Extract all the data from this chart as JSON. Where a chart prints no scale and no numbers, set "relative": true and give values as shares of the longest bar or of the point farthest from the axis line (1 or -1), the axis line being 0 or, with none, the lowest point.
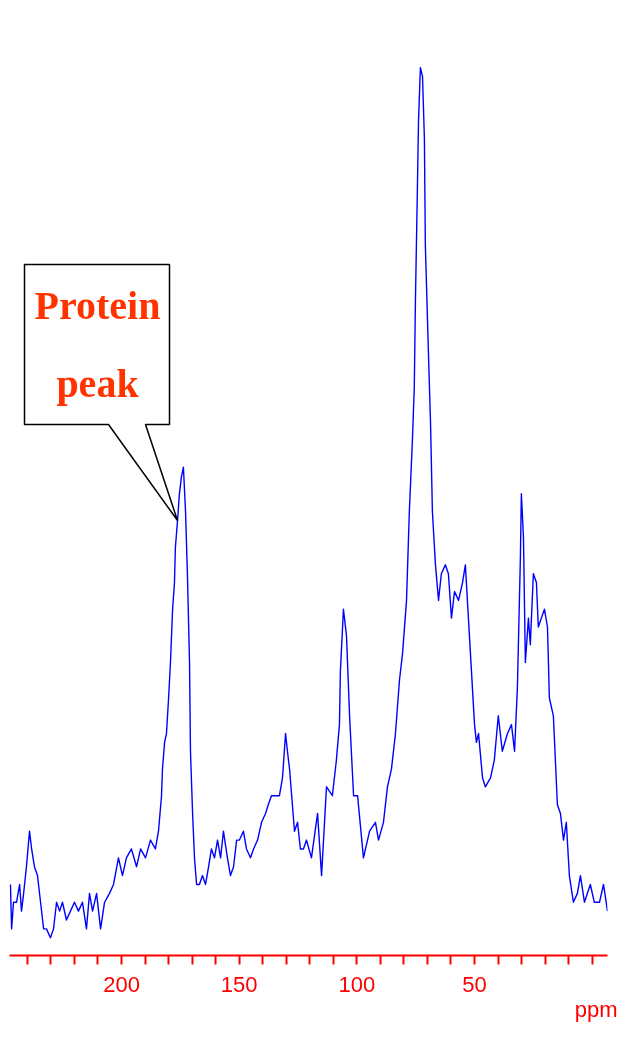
{
  "chart_data": {
    "type": "line",
    "relative": true,
    "xlabel": "ppm",
    "xlim": [
      247.6,
      -6.5
    ],
    "xticks": [
      {
        "value": 240,
        "label": null
      },
      {
        "value": 230,
        "label": null
      },
      {
        "value": 220,
        "label": null
      },
      {
        "value": 210,
        "label": null
      },
      200,
      {
        "value": 190,
        "label": null
      },
      {
        "value": 180,
        "label": null
      },
      {
        "value": 170,
        "label": null
      },
      {
        "value": 160,
        "label": null
      },
      150,
      {
        "value": 140,
        "label": null
      },
      {
        "value": 130,
        "label": null
      },
      {
        "value": 120,
        "label": null
      },
      {
        "value": 110,
        "label": null
      },
      100,
      {
        "value": 90,
        "label": null
      },
      {
        "value": 80,
        "label": null
      },
      {
        "value": 70,
        "label": null
      },
      {
        "value": 60,
        "label": null
      },
      50,
      {
        "value": 40,
        "label": null
      },
      {
        "value": 30,
        "label": null
      },
      {
        "value": 20,
        "label": null
      },
      {
        "value": 10,
        "label": null
      },
      {
        "value": 0,
        "label": null
      }
    ],
    "annotations": [
      "Protein\npeak"
    ],
    "series": [
      {
        "color": "#0000ff",
        "x": [
          247.2,
          246.7,
          245.9,
          244.6,
          243.3,
          242.5,
          241.6,
          240.4,
          239.1,
          238.2,
          237.0,
          235.7,
          234.4,
          233.1,
          231.9,
          230.2,
          228.9,
          227.6,
          226.3,
          225.1,
          223.4,
          221.7,
          220.0,
          218.3,
          216.6,
          214.9,
          213.6,
          212.3,
          210.6,
          208.9,
          207.2,
          205.1,
          203.4,
          201.3,
          199.6,
          197.9,
          195.8,
          193.6,
          191.9,
          189.8,
          187.7,
          185.6,
          184.3,
          183.0,
          182.6,
          181.7,
          180.9,
          180.0,
          179.2,
          178.3,
          177.5,
          177.1,
          176.2,
          175.4,
          174.5,
          173.7,
          172.8,
          172.0,
          171.1,
          170.7,
          169.8,
          169.0,
          168.1,
          166.9,
          165.6,
          164.3,
          163.0,
          161.8,
          160.5,
          159.2,
          157.9,
          156.7,
          155.0,
          153.7,
          152.4,
          151.1,
          149.9,
          148.2,
          146.9,
          145.2,
          143.9,
          142.2,
          140.5,
          138.8,
          137.6,
          136.3,
          134.6,
          132.9,
          131.6,
          130.3,
          129.5,
          128.6,
          127.4,
          126.5,
          125.2,
          124.0,
          122.7,
          121.4,
          119.3,
          116.7,
          115.0,
          112.9,
          110.4,
          108.7,
          107.4,
          107.0,
          105.7,
          104.4,
          103.1,
          101.4,
          99.7,
          97.2,
          94.6,
          92.1,
          90.8,
          88.7,
          87.0,
          85.3,
          83.6,
          81.9,
          80.6,
          78.9,
          77.7,
          76.4,
          75.6,
          75.1,
          74.3,
          73.8,
          73.0,
          72.1,
          71.3,
          70.9,
          69.6,
          68.7,
          67.9,
          66.6,
          65.3,
          64.1,
          62.4,
          61.1,
          59.8,
          58.5,
          56.8,
          55.1,
          53.9,
          52.6,
          51.3,
          50.0,
          49.2,
          48.3,
          46.6,
          45.4,
          43.2,
          41.6,
          39.9,
          38.2,
          36.0,
          34.3,
          33.0,
          31.8,
          30.5,
          30.1,
          29.2,
          28.4,
          27.1,
          26.3,
          25.0,
          23.7,
          22.9,
          21.6,
          20.3,
          19.0,
          18.2,
          16.5,
          14.8,
          13.5,
          12.2,
          11.0,
          9.7,
          8.0,
          6.3,
          5.0,
          3.3,
          0.8,
          -0.9,
          -3.1,
          -4.8,
          -6.5
        ],
        "values": [
          0.08,
          0.03,
          0.06,
          0.06,
          0.08,
          0.05,
          0.07,
          0.1,
          0.14,
          0.12,
          0.1,
          0.09,
          0.06,
          0.03,
          0.03,
          0.02,
          0.03,
          0.06,
          0.05,
          0.06,
          0.04,
          0.05,
          0.06,
          0.05,
          0.06,
          0.03,
          0.07,
          0.05,
          0.07,
          0.03,
          0.06,
          0.07,
          0.08,
          0.11,
          0.09,
          0.11,
          0.12,
          0.1,
          0.12,
          0.11,
          0.13,
          0.12,
          0.14,
          0.18,
          0.21,
          0.24,
          0.25,
          0.29,
          0.33,
          0.39,
          0.42,
          0.46,
          0.49,
          0.52,
          0.54,
          0.55,
          0.5,
          0.43,
          0.33,
          0.23,
          0.16,
          0.11,
          0.08,
          0.08,
          0.09,
          0.08,
          0.1,
          0.12,
          0.11,
          0.13,
          0.11,
          0.14,
          0.11,
          0.09,
          0.1,
          0.13,
          0.13,
          0.14,
          0.12,
          0.11,
          0.12,
          0.13,
          0.15,
          0.16,
          0.17,
          0.18,
          0.18,
          0.18,
          0.2,
          0.25,
          0.23,
          0.21,
          0.17,
          0.14,
          0.15,
          0.12,
          0.12,
          0.13,
          0.11,
          0.16,
          0.09,
          0.19,
          0.18,
          0.22,
          0.26,
          0.32,
          0.39,
          0.36,
          0.27,
          0.18,
          0.18,
          0.11,
          0.14,
          0.15,
          0.13,
          0.15,
          0.19,
          0.21,
          0.25,
          0.31,
          0.34,
          0.4,
          0.5,
          0.58,
          0.64,
          0.74,
          0.86,
          0.94,
          1.0,
          0.99,
          0.92,
          0.8,
          0.68,
          0.6,
          0.5,
          0.44,
          0.4,
          0.43,
          0.44,
          0.43,
          0.38,
          0.41,
          0.4,
          0.42,
          0.44,
          0.38,
          0.32,
          0.26,
          0.24,
          0.25,
          0.2,
          0.19,
          0.2,
          0.22,
          0.27,
          0.23,
          0.25,
          0.26,
          0.23,
          0.3,
          0.45,
          0.52,
          0.47,
          0.33,
          0.38,
          0.35,
          0.43,
          0.42,
          0.37,
          0.38,
          0.39,
          0.37,
          0.29,
          0.27,
          0.17,
          0.16,
          0.13,
          0.15,
          0.09,
          0.06,
          0.07,
          0.09,
          0.06,
          0.08,
          0.06,
          0.06,
          0.08,
          0.05
        ]
      }
    ]
  }
}
